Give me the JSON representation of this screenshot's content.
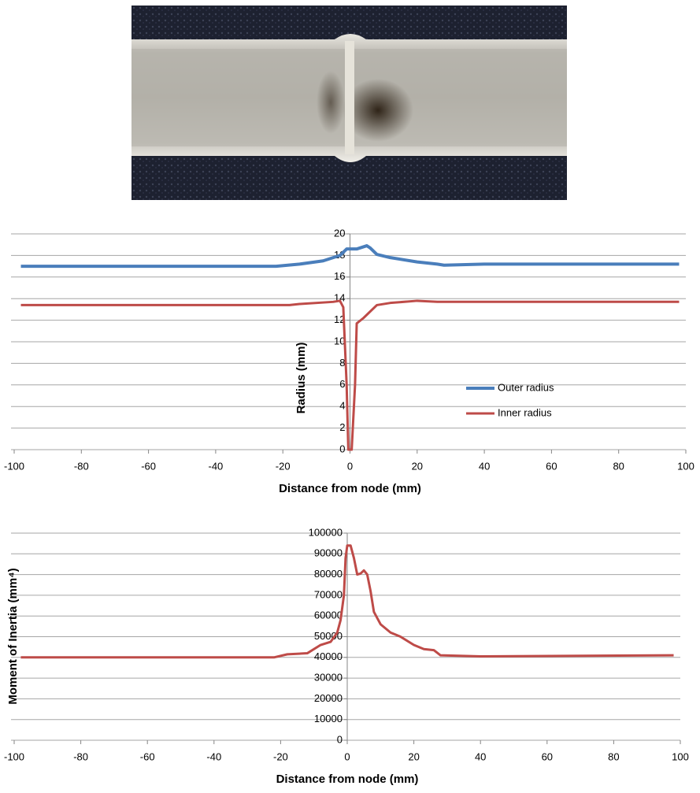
{
  "chart_data": [
    {
      "type": "line",
      "x_label": "Distance from node (mm)",
      "y_label": "Radius (mm)",
      "xlim": [
        -100,
        100
      ],
      "xticks": [
        -100,
        -80,
        -60,
        -40,
        -20,
        0,
        20,
        40,
        60,
        80,
        100
      ],
      "ylim": [
        0,
        20
      ],
      "yticks": [
        0,
        2,
        4,
        6,
        8,
        10,
        12,
        14,
        16,
        18,
        20
      ],
      "grid": true,
      "legend": "center-right",
      "series": [
        {
          "name": "Outer radius",
          "color": "#4a7ebb",
          "x": [
            -98,
            -22,
            -15,
            -8,
            -3,
            -1,
            2,
            4,
            5,
            6,
            8,
            12,
            20,
            26,
            28,
            40,
            98
          ],
          "values": [
            17.0,
            17.0,
            17.2,
            17.5,
            18.0,
            18.6,
            18.6,
            18.8,
            18.9,
            18.7,
            18.1,
            17.8,
            17.4,
            17.2,
            17.1,
            17.2,
            17.2
          ]
        },
        {
          "name": "Inner radius",
          "color": "#be4b48",
          "x": [
            -98,
            -18,
            -15,
            -5,
            -3,
            -2,
            -1,
            -0.5,
            0.5,
            1.5,
            2,
            4,
            6,
            8,
            12,
            20,
            26,
            98
          ],
          "values": [
            13.4,
            13.4,
            13.5,
            13.7,
            13.8,
            13.2,
            6,
            0,
            0,
            6,
            11.7,
            12.2,
            12.8,
            13.4,
            13.6,
            13.8,
            13.7,
            13.7
          ]
        }
      ]
    },
    {
      "type": "line",
      "x_label": "Distance from node (mm)",
      "y_label": "Moment of Inertia (mm⁴)",
      "xlim": [
        -100,
        100
      ],
      "xticks": [
        -100,
        -80,
        -60,
        -40,
        -20,
        0,
        20,
        40,
        60,
        80,
        100
      ],
      "ylim": [
        0,
        100000
      ],
      "yticks": [
        0,
        10000,
        20000,
        30000,
        40000,
        50000,
        60000,
        70000,
        80000,
        90000,
        100000
      ],
      "grid": true,
      "series": [
        {
          "color": "#be4b48",
          "x": [
            -98,
            -22,
            -18,
            -12,
            -8,
            -5,
            -3,
            -2,
            -1,
            -0.5,
            0,
            1,
            2,
            3,
            4,
            5,
            6,
            7,
            8,
            10,
            13,
            16,
            20,
            23,
            26,
            28,
            40,
            98
          ],
          "values": [
            40000,
            40000,
            41500,
            42000,
            46000,
            47500,
            52000,
            58000,
            70000,
            88000,
            94000,
            94000,
            88000,
            80000,
            80500,
            82000,
            80000,
            72000,
            62000,
            56000,
            52000,
            50000,
            46000,
            44000,
            43500,
            41000,
            40500,
            41000
          ]
        }
      ]
    }
  ]
}
